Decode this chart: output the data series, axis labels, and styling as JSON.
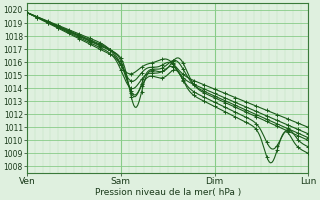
{
  "title": "Pression niveau de la mer( hPa )",
  "ylim": [
    1007.5,
    1020.5
  ],
  "yticks": [
    1008,
    1009,
    1010,
    1011,
    1012,
    1013,
    1014,
    1015,
    1016,
    1017,
    1018,
    1019,
    1020
  ],
  "xtick_labels": [
    "Ven",
    "Sam",
    "Dim",
    "Lun"
  ],
  "xtick_positions": [
    0,
    72,
    144,
    216
  ],
  "x_total": 216,
  "bg_color": "#dff0df",
  "grid_major_color": "#88cc88",
  "grid_minor_color": "#bbddbb",
  "line_color": "#1a5c1a",
  "n_points": 217,
  "figsize": [
    3.2,
    2.0
  ],
  "dpi": 100
}
